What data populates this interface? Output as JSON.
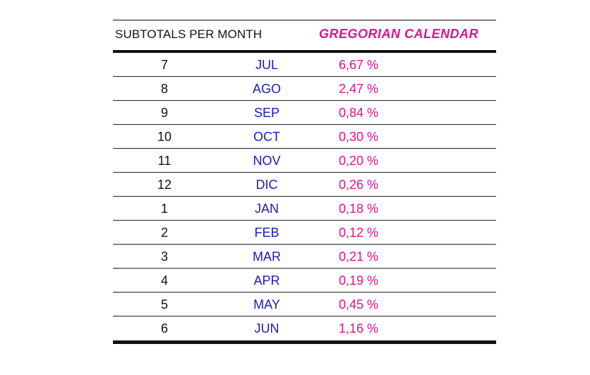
{
  "header": {
    "left_label": "SUBTOTALS PER MONTH",
    "right_label": "GREGORIAN CALENDAR"
  },
  "colors": {
    "month": "#1a1ab8",
    "percent": "#e0138c",
    "text": "#111111"
  },
  "rows": [
    {
      "num": "7",
      "month": "JUL",
      "pct": "6,67 %"
    },
    {
      "num": "8",
      "month": "AGO",
      "pct": "2,47 %"
    },
    {
      "num": "9",
      "month": "SEP",
      "pct": "0,84 %"
    },
    {
      "num": "10",
      "month": "OCT",
      "pct": "0,30 %"
    },
    {
      "num": "11",
      "month": "NOV",
      "pct": "0,20 %"
    },
    {
      "num": "12",
      "month": "DIC",
      "pct": "0,26 %"
    },
    {
      "num": "1",
      "month": "JAN",
      "pct": "0,18 %"
    },
    {
      "num": "2",
      "month": "FEB",
      "pct": "0,12 %"
    },
    {
      "num": "3",
      "month": "MAR",
      "pct": "0,21 %"
    },
    {
      "num": "4",
      "month": "APR",
      "pct": "0,19 %"
    },
    {
      "num": "5",
      "month": "MAY",
      "pct": "0,45 %"
    },
    {
      "num": "6",
      "month": "JUN",
      "pct": "1,16 %"
    }
  ]
}
